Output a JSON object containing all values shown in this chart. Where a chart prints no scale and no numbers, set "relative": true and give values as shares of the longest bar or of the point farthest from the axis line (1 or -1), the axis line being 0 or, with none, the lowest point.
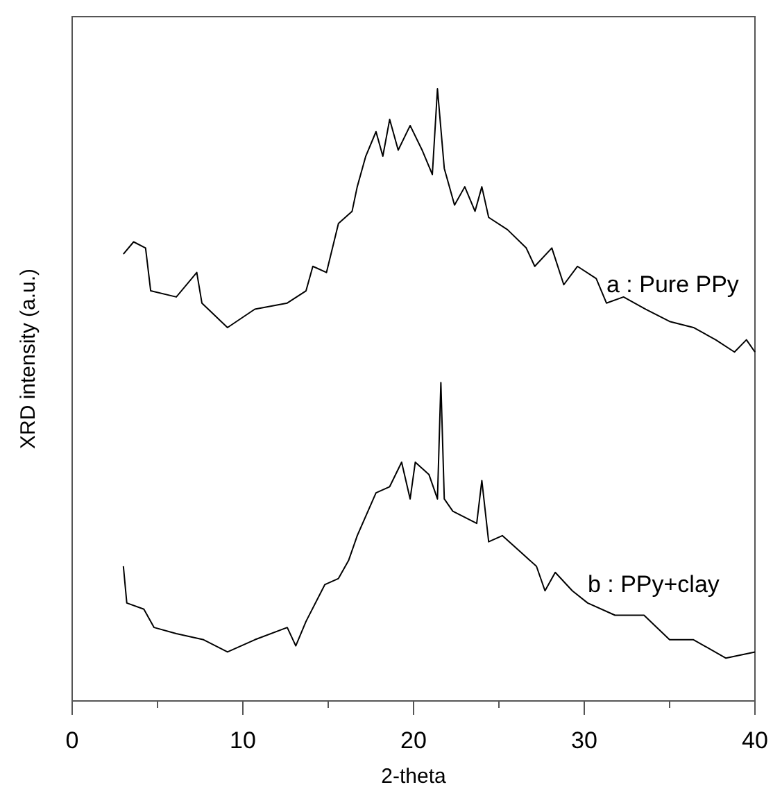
{
  "chart_data": {
    "type": "line",
    "xlabel": "2-theta",
    "ylabel": "XRD intensity (a.u.)",
    "relative": true,
    "xlim": [
      0,
      40
    ],
    "xticks": [
      0,
      {
        "value": 5,
        "label": null
      },
      10,
      {
        "value": 15,
        "label": null
      },
      20,
      {
        "value": 25,
        "label": null
      },
      30,
      {
        "value": 35,
        "label": null
      },
      40
    ],
    "grid": false,
    "marker": "none",
    "line_style": "solid",
    "series": [
      {
        "name": "a : Pure PPy",
        "color": "#000000",
        "x": [
          3.0,
          3.6,
          4.3,
          4.6,
          6.1,
          7.3,
          7.6,
          9.1,
          10.7,
          12.6,
          13.7,
          14.1,
          14.9,
          15.6,
          16.4,
          16.7,
          17.2,
          17.8,
          18.2,
          18.6,
          19.1,
          19.8,
          20.5,
          21.1,
          21.4,
          21.8,
          22.4,
          23.0,
          23.6,
          24.0,
          24.4,
          25.5,
          26.6,
          27.1,
          28.1,
          28.8,
          29.6,
          30.7,
          31.3,
          32.3,
          33.6,
          35.0,
          36.4,
          37.7,
          38.8,
          39.5,
          40.0
        ],
        "values": [
          0.73,
          0.75,
          0.74,
          0.67,
          0.66,
          0.7,
          0.65,
          0.61,
          0.64,
          0.65,
          0.67,
          0.71,
          0.7,
          0.78,
          0.8,
          0.84,
          0.89,
          0.93,
          0.89,
          0.95,
          0.9,
          0.94,
          0.9,
          0.86,
          1.0,
          0.87,
          0.81,
          0.84,
          0.8,
          0.84,
          0.79,
          0.77,
          0.74,
          0.71,
          0.74,
          0.68,
          0.71,
          0.69,
          0.65,
          0.66,
          0.64,
          0.62,
          0.61,
          0.59,
          0.57,
          0.59,
          0.57
        ]
      },
      {
        "name": "b : PPy+clay",
        "color": "#000000",
        "x": [
          3.0,
          3.2,
          4.2,
          4.8,
          6.1,
          7.7,
          9.1,
          10.7,
          12.6,
          13.1,
          13.7,
          14.8,
          15.6,
          16.2,
          16.7,
          17.8,
          18.6,
          19.3,
          19.8,
          20.1,
          20.9,
          21.4,
          21.6,
          21.8,
          22.3,
          23.7,
          24.0,
          24.4,
          25.2,
          26.4,
          27.2,
          27.7,
          28.3,
          29.3,
          30.2,
          31.8,
          33.5,
          35.0,
          36.4,
          38.3,
          40.0
        ],
        "values": [
          0.22,
          0.16,
          0.15,
          0.12,
          0.11,
          0.1,
          0.08,
          0.1,
          0.12,
          0.09,
          0.13,
          0.19,
          0.2,
          0.23,
          0.27,
          0.34,
          0.35,
          0.39,
          0.33,
          0.39,
          0.37,
          0.33,
          0.52,
          0.33,
          0.31,
          0.29,
          0.36,
          0.26,
          0.27,
          0.24,
          0.22,
          0.18,
          0.21,
          0.18,
          0.16,
          0.14,
          0.14,
          0.1,
          0.1,
          0.07,
          0.08
        ]
      }
    ]
  }
}
